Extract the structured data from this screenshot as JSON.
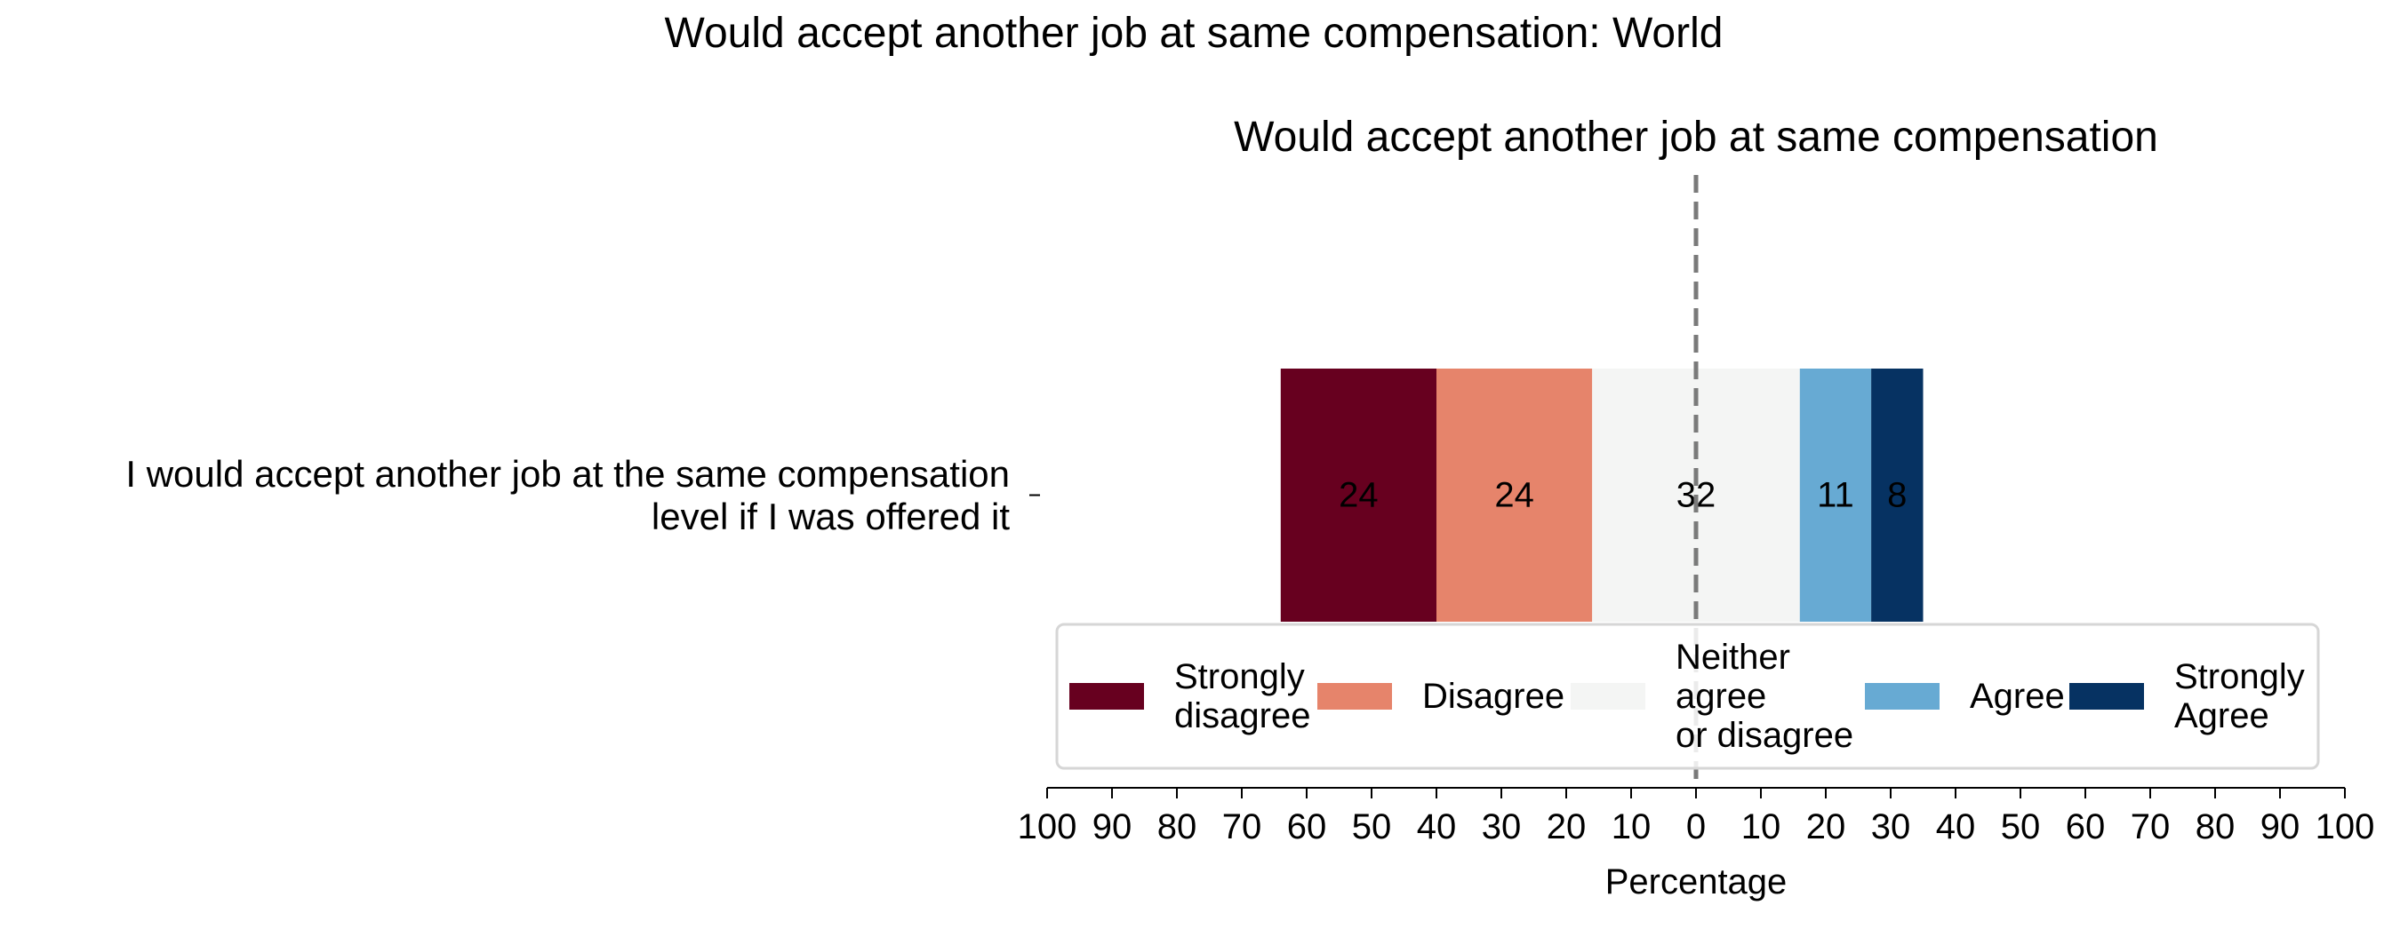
{
  "figure": {
    "suptitle": "Would accept another job at same compensation: World"
  },
  "chart_data": {
    "type": "bar",
    "orientation": "horizontal",
    "stacked": true,
    "diverging": true,
    "title": "Would accept another job at same compensation",
    "xlabel": "Percentage",
    "ylabel": "",
    "xlim": [
      -100,
      100
    ],
    "x_ticks": [
      -100,
      -90,
      -80,
      -70,
      -60,
      -50,
      -40,
      -30,
      -20,
      -10,
      0,
      10,
      20,
      30,
      40,
      50,
      60,
      70,
      80,
      90,
      100
    ],
    "x_tick_labels": [
      "100",
      "90",
      "80",
      "70",
      "60",
      "50",
      "40",
      "30",
      "20",
      "10",
      "0",
      "10",
      "20",
      "30",
      "40",
      "50",
      "60",
      "70",
      "80",
      "90",
      "100"
    ],
    "categories": [
      [
        "I would accept another job at the same compensation",
        "level if I was offered it"
      ]
    ],
    "series": [
      {
        "name": "Strongly disagree",
        "legend_lines": [
          "Strongly",
          "disagree"
        ],
        "values": [
          24
        ],
        "color": "#67001f"
      },
      {
        "name": "Disagree",
        "legend_lines": [
          "Disagree"
        ],
        "values": [
          24
        ],
        "color": "#e6846b"
      },
      {
        "name": "Neither agree or disagree",
        "legend_lines": [
          "Neither",
          "agree",
          "or disagree"
        ],
        "values": [
          32
        ],
        "color": "#f4f5f4"
      },
      {
        "name": "Agree",
        "legend_lines": [
          "Agree"
        ],
        "values": [
          11
        ],
        "color": "#67aad3"
      },
      {
        "name": "Strongly Agree",
        "legend_lines": [
          "Strongly",
          "Agree"
        ],
        "values": [
          8
        ],
        "color": "#063262"
      }
    ],
    "neutral_series": "Neither agree or disagree",
    "zero_line": {
      "style": "dashed",
      "color": "#7a7a7a"
    },
    "legend": {
      "placement": "bottom-center",
      "ncol": 5
    },
    "grid": false
  }
}
